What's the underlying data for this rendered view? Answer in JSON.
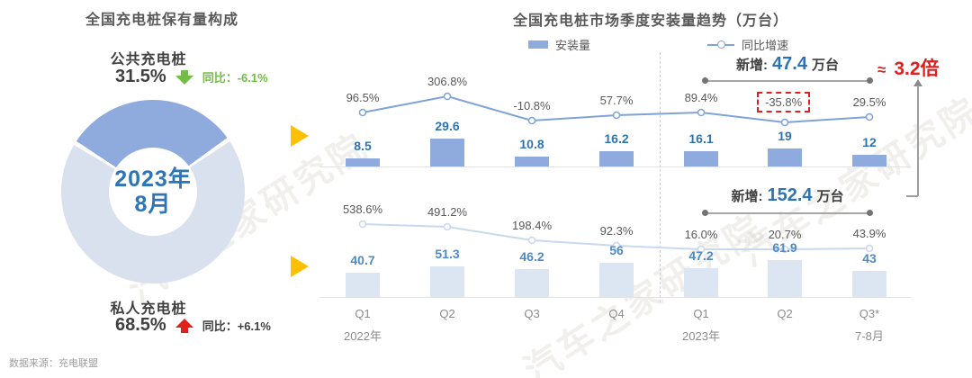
{
  "watermark": {
    "text": "汽车之家研究院"
  },
  "source": "数据来源：充电联盟",
  "left_panel": {
    "title": "全国充电桩保有量构成",
    "public": {
      "label": "公共充电桩",
      "value": "31.5%",
      "yoy": "同比：-6.1%"
    },
    "private": {
      "label": "私人充电桩",
      "value": "68.5%",
      "yoy": "同比：+6.1%"
    },
    "donut": {
      "center_line1": "2023年",
      "center_line2": "8月",
      "segments": [
        {
          "name": "公共充电桩",
          "share": 31.5,
          "color": "#8FAADC"
        },
        {
          "name": "私人充电桩",
          "share": 68.5,
          "color": "#DAE1EE"
        }
      ]
    }
  },
  "right_panel": {
    "title": "全国充电桩市场季度安装量趋势（万台）",
    "legend": {
      "bar_label": "安装量",
      "line_label": "同比增速"
    },
    "annotation_top": {
      "prefix": "新增:",
      "value": "47.4",
      "suffix": "万台"
    },
    "annotation_bottom": {
      "prefix": "新增:",
      "value": "152.4",
      "suffix": "万台"
    },
    "multiple": {
      "approx": "≈",
      "value": "3.2倍"
    }
  },
  "x_axis": {
    "quarters": [
      "Q1",
      "Q2",
      "Q3",
      "Q4",
      "Q1",
      "Q2",
      "Q3*"
    ],
    "year_labels": [
      {
        "text": "2022年",
        "index": 0
      },
      {
        "text": "2023年",
        "index": 4
      },
      {
        "text": "7-8月",
        "index": 6
      }
    ]
  },
  "chart_data": [
    {
      "type": "bar+line",
      "name": "upper-quarterly-installs",
      "categories": [
        "Q1",
        "Q2",
        "Q3",
        "Q4",
        "Q1",
        "Q2",
        "Q3*"
      ],
      "bar_series": {
        "name": "安装量",
        "values": [
          8.5,
          29.6,
          10.8,
          16.2,
          16.1,
          19,
          12
        ],
        "labels": [
          "8.5",
          "29.6",
          "10.8",
          "16.2",
          "16.1",
          "19",
          "12"
        ]
      },
      "line_series": {
        "name": "同比增速",
        "values_pct": [
          96.5,
          306.8,
          -10.8,
          57.7,
          89.4,
          -35.8,
          29.5
        ],
        "labels": [
          "96.5%",
          "306.8%",
          "-10.8%",
          "57.7%",
          "89.4%",
          "-35.8%",
          "29.5%"
        ],
        "highlight_index": 5
      },
      "bar_color": "#8FAADC",
      "line_color": "#7FA3D7",
      "value_color": "#2E74B5"
    },
    {
      "type": "bar+line",
      "name": "lower-quarterly-installs",
      "categories": [
        "Q1",
        "Q2",
        "Q3",
        "Q4",
        "Q1",
        "Q2",
        "Q3*"
      ],
      "bar_series": {
        "name": "安装量",
        "values": [
          40.7,
          51.3,
          46.2,
          56,
          47.2,
          61.9,
          43
        ],
        "labels": [
          "40.7",
          "51.3",
          "46.2",
          "56",
          "47.2",
          "61.9",
          "43"
        ]
      },
      "line_series": {
        "name": "同比增速",
        "values_pct": [
          538.6,
          491.2,
          198.4,
          92.3,
          16.0,
          20.7,
          43.9
        ],
        "labels": [
          "538.6%",
          "491.2%",
          "198.4%",
          "92.3%",
          "16.0%",
          "20.7%",
          "43.9%"
        ],
        "highlight_index": -1
      },
      "bar_color": "#DCE6F3",
      "line_color": "#C9D8EC",
      "value_color": "#4E8AC8"
    }
  ]
}
